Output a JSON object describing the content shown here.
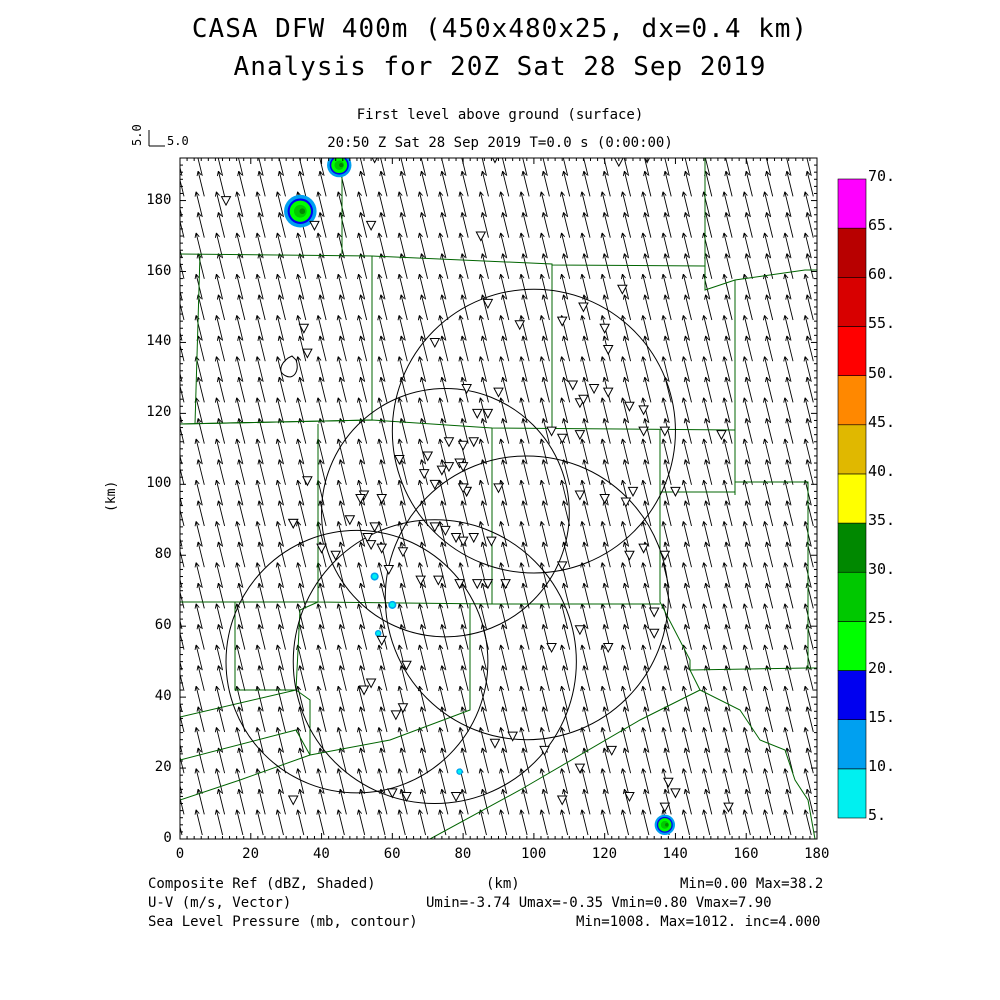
{
  "header": {
    "title1": "CASA DFW 400m (450x480x25, dx=0.4 km)",
    "title2": "Analysis for 20Z Sat 28 Sep 2019",
    "subtitle1": "First level above ground (surface)",
    "subtitle2": "20:50 Z Sat 28 Sep 2019    T=0.0 s (0:00:00)",
    "ref_vector_label_vertical": "5.0",
    "ref_vector_label": "5.0"
  },
  "axes": {
    "ylabel": "(km)",
    "xlabel": "(km)",
    "x_ticks": [
      "0",
      "20",
      "40",
      "60",
      "80",
      "100",
      "120",
      "140",
      "160",
      "180"
    ],
    "y_ticks": [
      "0",
      "20",
      "40",
      "60",
      "80",
      "100",
      "120",
      "140",
      "160",
      "180"
    ]
  },
  "colorbar": {
    "levels": [
      "5.",
      "10.",
      "15.",
      "20.",
      "25.",
      "30.",
      "35.",
      "40.",
      "45.",
      "50.",
      "55.",
      "60.",
      "65.",
      "70."
    ],
    "colors": [
      "#00f0f0",
      "#00a0f0",
      "#0000f0",
      "#00ff00",
      "#00c800",
      "#008800",
      "#ffff00",
      "#e0b800",
      "#ff8800",
      "#ff0000",
      "#d80000",
      "#b80000",
      "#ff00ff"
    ]
  },
  "footer": {
    "line1_left": "Composite Ref (dBZ, Shaded)",
    "line1_mid": "(km)",
    "line1_right": "Min=0.00 Max=38.2",
    "line2_left": "U-V (m/s, Vector)",
    "line2_right": "Umin=-3.74 Umax=-0.35 Vmin=0.80 Vmax=7.90",
    "line3_left": "Sea Level Pressure (mb, contour)",
    "line3_right": "Min=1008. Max=1012. inc=4.000"
  },
  "chart_data": {
    "type": "map",
    "x_range_km": [
      0,
      180
    ],
    "y_range_km": [
      0,
      192
    ],
    "fields": {
      "reflectivity": {
        "units": "dBZ",
        "min": 0.0,
        "max": 38.2
      },
      "wind": {
        "units": "m/s",
        "umin": -3.74,
        "umax": -0.35,
        "vmin": 0.8,
        "vmax": 7.9
      },
      "sea_level_pressure": {
        "units": "mb",
        "min": 1008.0,
        "max": 1012.0,
        "inc": 4.0
      }
    },
    "echoes_km": [
      {
        "x": 45,
        "y": 190,
        "r": 3
      },
      {
        "x": 34,
        "y": 177,
        "r": 4
      },
      {
        "x": 137,
        "y": 4,
        "r": 2.5
      },
      {
        "x": 55,
        "y": 74,
        "r": 1
      },
      {
        "x": 60,
        "y": 66,
        "r": 1
      },
      {
        "x": 56,
        "y": 58,
        "r": 0.8
      },
      {
        "x": 79,
        "y": 19,
        "r": 0.8
      }
    ],
    "radar_rings_km": [
      {
        "x": 100,
        "y": 115,
        "r": 40
      },
      {
        "x": 75,
        "y": 92,
        "r": 35
      },
      {
        "x": 98,
        "y": 68,
        "r": 40
      },
      {
        "x": 50,
        "y": 50,
        "r": 37
      },
      {
        "x": 72,
        "y": 50,
        "r": 40
      }
    ],
    "stations_km": [
      [
        55,
        192
      ],
      [
        89,
        192
      ],
      [
        124,
        191
      ],
      [
        132,
        192
      ],
      [
        13,
        180
      ],
      [
        38,
        173
      ],
      [
        54,
        173
      ],
      [
        85,
        170
      ],
      [
        125,
        155
      ],
      [
        114,
        150
      ],
      [
        108,
        146
      ],
      [
        87,
        151
      ],
      [
        120,
        144
      ],
      [
        96,
        145
      ],
      [
        35,
        144
      ],
      [
        36,
        137
      ],
      [
        72,
        140
      ],
      [
        121,
        138
      ],
      [
        111,
        128
      ],
      [
        117,
        127
      ],
      [
        121,
        126
      ],
      [
        113,
        123
      ],
      [
        114,
        124
      ],
      [
        127,
        122
      ],
      [
        131,
        121
      ],
      [
        81,
        127
      ],
      [
        90,
        126
      ],
      [
        84,
        120
      ],
      [
        87,
        120
      ],
      [
        113,
        114
      ],
      [
        108,
        113
      ],
      [
        105,
        115
      ],
      [
        131,
        115
      ],
      [
        137,
        115
      ],
      [
        153,
        114
      ],
      [
        76,
        112
      ],
      [
        80,
        111
      ],
      [
        83,
        112
      ],
      [
        79,
        106
      ],
      [
        80,
        105
      ],
      [
        70,
        108
      ],
      [
        76,
        105
      ],
      [
        74,
        104
      ],
      [
        69,
        103
      ],
      [
        62,
        107
      ],
      [
        72,
        100
      ],
      [
        81,
        98
      ],
      [
        81,
        98
      ],
      [
        90,
        99
      ],
      [
        80,
        99
      ],
      [
        113,
        97
      ],
      [
        120,
        96
      ],
      [
        128,
        98
      ],
      [
        126,
        95
      ],
      [
        140,
        98
      ],
      [
        36,
        101
      ],
      [
        52,
        97
      ],
      [
        51,
        96
      ],
      [
        57,
        96
      ],
      [
        48,
        90
      ],
      [
        55,
        88
      ],
      [
        53,
        85
      ],
      [
        54,
        83
      ],
      [
        57,
        82
      ],
      [
        63,
        81
      ],
      [
        72,
        88
      ],
      [
        75,
        87
      ],
      [
        78,
        85
      ],
      [
        80,
        84
      ],
      [
        83,
        85
      ],
      [
        88,
        84
      ],
      [
        32,
        89
      ],
      [
        32,
        89
      ],
      [
        40,
        82
      ],
      [
        44,
        80
      ],
      [
        59,
        76
      ],
      [
        68,
        73
      ],
      [
        73,
        73
      ],
      [
        79,
        72
      ],
      [
        84,
        72
      ],
      [
        87,
        72
      ],
      [
        92,
        72
      ],
      [
        108,
        77
      ],
      [
        127,
        80
      ],
      [
        131,
        82
      ],
      [
        137,
        80
      ],
      [
        134,
        64
      ],
      [
        105,
        54
      ],
      [
        134,
        58
      ],
      [
        121,
        54
      ],
      [
        113,
        59
      ],
      [
        57,
        56
      ],
      [
        64,
        49
      ],
      [
        54,
        44
      ],
      [
        52,
        42
      ],
      [
        63,
        37
      ],
      [
        61,
        35
      ],
      [
        89,
        27
      ],
      [
        94,
        29
      ],
      [
        103,
        25
      ],
      [
        122,
        25
      ],
      [
        113,
        20
      ],
      [
        138,
        16
      ],
      [
        140,
        13
      ],
      [
        127,
        12
      ],
      [
        155,
        9
      ],
      [
        137,
        9
      ],
      [
        108,
        11
      ],
      [
        60,
        13
      ],
      [
        64,
        12
      ],
      [
        78,
        12
      ],
      [
        32,
        11
      ]
    ]
  }
}
